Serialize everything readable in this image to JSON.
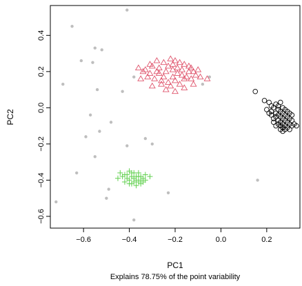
{
  "chart_data": {
    "type": "scatter",
    "xlabel": "PC1",
    "ylabel": "PC2",
    "subtitle": "Explains 78.75% of the point variability",
    "xlim": [
      -0.745,
      0.345
    ],
    "ylim": [
      -0.665,
      0.565
    ],
    "x_ticks": [
      -0.6,
      -0.4,
      -0.2,
      0.0,
      0.2
    ],
    "x_tick_labels": [
      "−0.6",
      "−0.4",
      "−0.2",
      "0.0",
      "0.2"
    ],
    "y_ticks": [
      -0.6,
      -0.4,
      -0.2,
      0.0,
      0.2,
      0.4
    ],
    "y_tick_labels": [
      "−0.6",
      "−0.4",
      "−0.2",
      "0.0",
      "0.2",
      "0.4"
    ],
    "grid": false,
    "series": [
      {
        "marker": "dot",
        "color": "#BEBEBE",
        "points": [
          [
            -0.41,
            0.54
          ],
          [
            -0.65,
            0.45
          ],
          [
            -0.55,
            0.33
          ],
          [
            -0.52,
            0.32
          ],
          [
            -0.61,
            0.26
          ],
          [
            -0.56,
            0.25
          ],
          [
            -0.69,
            0.13
          ],
          [
            -0.54,
            0.1
          ],
          [
            -0.57,
            -0.04
          ],
          [
            -0.48,
            -0.08
          ],
          [
            -0.53,
            -0.13
          ],
          [
            -0.59,
            -0.16
          ],
          [
            -0.41,
            -0.21
          ],
          [
            -0.55,
            -0.27
          ],
          [
            -0.63,
            -0.36
          ],
          [
            -0.49,
            -0.45
          ],
          [
            -0.5,
            -0.5
          ],
          [
            -0.72,
            -0.52
          ],
          [
            -0.38,
            -0.62
          ],
          [
            -0.23,
            -0.47
          ],
          [
            -0.38,
            0.17
          ],
          [
            -0.43,
            0.09
          ],
          [
            -0.33,
            -0.17
          ],
          [
            -0.3,
            -0.2
          ],
          [
            -0.05,
            0.17
          ],
          [
            -0.08,
            0.13
          ],
          [
            0.16,
            -0.4
          ]
        ]
      },
      {
        "marker": "triangle",
        "color": "#DF536B",
        "points": [
          [
            -0.36,
            0.22
          ],
          [
            -0.33,
            0.21
          ],
          [
            -0.31,
            0.24
          ],
          [
            -0.3,
            0.23
          ],
          [
            -0.28,
            0.26
          ],
          [
            -0.25,
            0.25
          ],
          [
            -0.22,
            0.27
          ],
          [
            -0.2,
            0.26
          ],
          [
            -0.18,
            0.25
          ],
          [
            -0.16,
            0.24
          ],
          [
            -0.14,
            0.23
          ],
          [
            -0.12,
            0.2
          ],
          [
            -0.1,
            0.21
          ],
          [
            -0.27,
            0.19
          ],
          [
            -0.24,
            0.2
          ],
          [
            -0.21,
            0.21
          ],
          [
            -0.19,
            0.19
          ],
          [
            -0.17,
            0.18
          ],
          [
            -0.15,
            0.17
          ],
          [
            -0.13,
            0.16
          ],
          [
            -0.26,
            0.15
          ],
          [
            -0.23,
            0.14
          ],
          [
            -0.2,
            0.15
          ],
          [
            -0.18,
            0.13
          ],
          [
            -0.29,
            0.16
          ],
          [
            -0.32,
            0.17
          ],
          [
            -0.22,
            0.12
          ],
          [
            -0.24,
            0.1
          ],
          [
            -0.06,
            0.16
          ],
          [
            -0.35,
            0.16
          ],
          [
            -0.3,
            0.12
          ],
          [
            -0.2,
            0.09
          ],
          [
            -0.16,
            0.11
          ],
          [
            -0.27,
            0.22
          ],
          [
            -0.23,
            0.23
          ],
          [
            -0.19,
            0.22
          ],
          [
            -0.14,
            0.2
          ],
          [
            -0.11,
            0.18
          ],
          [
            -0.21,
            0.17
          ],
          [
            -0.17,
            0.21
          ],
          [
            -0.25,
            0.17
          ],
          [
            -0.28,
            0.2
          ],
          [
            -0.13,
            0.22
          ],
          [
            -0.09,
            0.17
          ],
          [
            -0.31,
            0.19
          ],
          [
            -0.21,
            0.24
          ],
          [
            -0.16,
            0.16
          ],
          [
            -0.26,
            0.13
          ],
          [
            -0.12,
            0.13
          ],
          [
            -0.34,
            0.2
          ]
        ]
      },
      {
        "marker": "circle",
        "color": "#000000",
        "points": [
          [
            0.15,
            0.09
          ],
          [
            0.19,
            0.04
          ],
          [
            0.21,
            0.03
          ],
          [
            0.22,
            0.01
          ],
          [
            0.23,
            0.0
          ],
          [
            0.24,
            0.02
          ],
          [
            0.25,
            -0.01
          ],
          [
            0.26,
            -0.02
          ],
          [
            0.27,
            -0.03
          ],
          [
            0.28,
            -0.04
          ],
          [
            0.29,
            -0.05
          ],
          [
            0.3,
            -0.06
          ],
          [
            0.31,
            -0.07
          ],
          [
            0.22,
            -0.04
          ],
          [
            0.23,
            -0.06
          ],
          [
            0.24,
            -0.05
          ],
          [
            0.25,
            -0.07
          ],
          [
            0.26,
            -0.08
          ],
          [
            0.27,
            -0.09
          ],
          [
            0.28,
            -0.1
          ],
          [
            0.29,
            -0.11
          ],
          [
            0.3,
            -0.12
          ],
          [
            0.26,
            -0.12
          ],
          [
            0.27,
            -0.13
          ],
          [
            0.24,
            -0.1
          ],
          [
            0.21,
            -0.03
          ],
          [
            0.2,
            -0.01
          ],
          [
            0.25,
            0.01
          ],
          [
            0.26,
            0.03
          ],
          [
            0.27,
            0.0
          ],
          [
            0.28,
            -0.01
          ],
          [
            0.29,
            -0.02
          ],
          [
            0.3,
            -0.03
          ],
          [
            0.31,
            -0.04
          ],
          [
            0.32,
            -0.09
          ],
          [
            0.33,
            -0.1
          ],
          [
            0.23,
            -0.08
          ],
          [
            0.25,
            -0.04
          ],
          [
            0.26,
            -0.05
          ],
          [
            0.27,
            -0.06
          ],
          [
            0.28,
            -0.07
          ],
          [
            0.29,
            -0.08
          ],
          [
            0.24,
            -0.03
          ],
          [
            0.22,
            -0.02
          ],
          [
            0.26,
            -0.1
          ],
          [
            0.28,
            -0.12
          ],
          [
            0.3,
            -0.09
          ],
          [
            0.25,
            -0.09
          ],
          [
            0.27,
            -0.11
          ],
          [
            0.31,
            -0.1
          ]
        ]
      },
      {
        "marker": "plus",
        "color": "#61D04F",
        "points": [
          [
            -0.44,
            -0.36
          ],
          [
            -0.43,
            -0.38
          ],
          [
            -0.42,
            -0.37
          ],
          [
            -0.41,
            -0.39
          ],
          [
            -0.4,
            -0.4
          ],
          [
            -0.39,
            -0.38
          ],
          [
            -0.38,
            -0.39
          ],
          [
            -0.37,
            -0.4
          ],
          [
            -0.36,
            -0.41
          ],
          [
            -0.35,
            -0.42
          ],
          [
            -0.4,
            -0.35
          ],
          [
            -0.38,
            -0.36
          ],
          [
            -0.36,
            -0.38
          ],
          [
            -0.34,
            -0.39
          ],
          [
            -0.33,
            -0.4
          ],
          [
            -0.42,
            -0.41
          ],
          [
            -0.39,
            -0.42
          ],
          [
            -0.37,
            -0.43
          ],
          [
            -0.35,
            -0.38
          ],
          [
            -0.41,
            -0.37
          ],
          [
            -0.38,
            -0.41
          ],
          [
            -0.36,
            -0.36
          ],
          [
            -0.34,
            -0.41
          ],
          [
            -0.31,
            -0.38
          ],
          [
            -0.45,
            -0.39
          ],
          [
            -0.33,
            -0.37
          ],
          [
            -0.39,
            -0.36
          ],
          [
            -0.4,
            -0.42
          ],
          [
            -0.37,
            -0.38
          ],
          [
            -0.35,
            -0.4
          ]
        ]
      }
    ]
  }
}
